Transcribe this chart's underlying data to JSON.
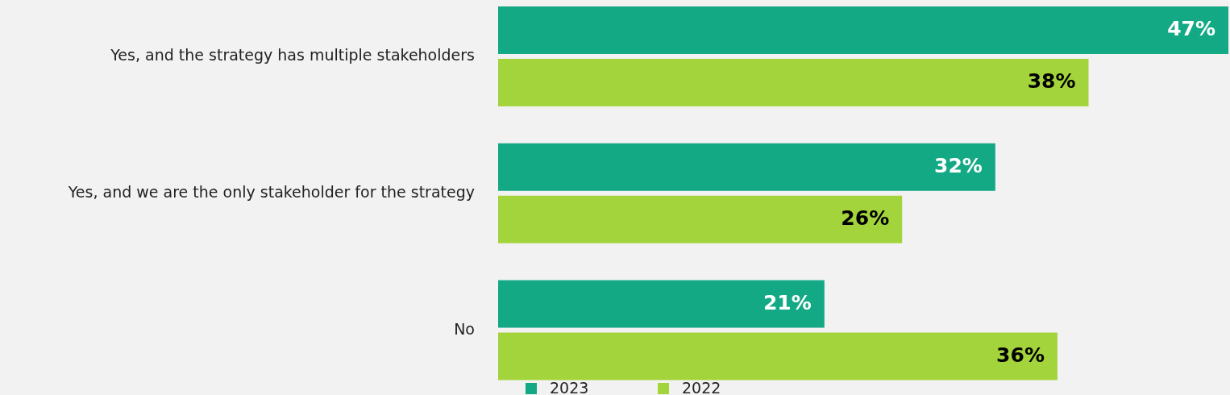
{
  "chart_data": {
    "type": "bar",
    "orientation": "horizontal",
    "categories": [
      "Yes, and the strategy has multiple stakeholders",
      "Yes, and we are the only stakeholder for the strategy",
      "No"
    ],
    "series": [
      {
        "name": "2023",
        "color": "#13a984",
        "values": [
          47,
          32,
          21
        ],
        "value_labels": [
          "47%",
          "32%",
          "21%"
        ]
      },
      {
        "name": "2022",
        "color": "#a3d43c",
        "values": [
          38,
          26,
          36
        ],
        "value_labels": [
          "38%",
          "26%",
          "36%"
        ]
      }
    ],
    "legend": "bottom"
  }
}
